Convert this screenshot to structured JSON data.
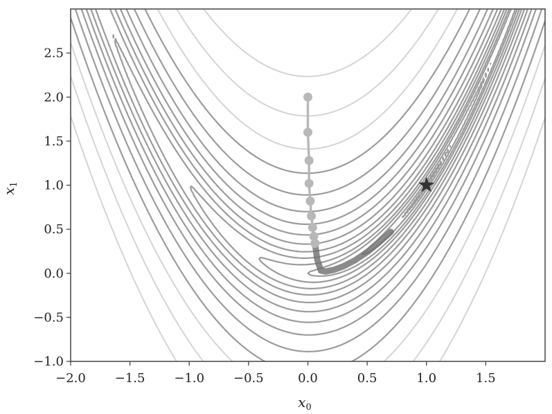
{
  "chart_data": {
    "type": "contour",
    "function": "rosenbrock",
    "xlabel": "x",
    "xlabel_sub": "0",
    "ylabel": "x",
    "ylabel_sub": "1",
    "xlim": [
      -2.0,
      2.0
    ],
    "ylim": [
      -1.0,
      3.0
    ],
    "xticks": [
      -2.0,
      -1.5,
      -1.0,
      -0.5,
      0.0,
      0.5,
      1.0,
      1.5
    ],
    "xtick_labels": [
      "−2.0",
      "−1.5",
      "−1.0",
      "−0.5",
      "0.0",
      "0.5",
      "1.0",
      "1.5"
    ],
    "yticks": [
      -1.0,
      -0.5,
      0.0,
      0.5,
      1.0,
      1.5,
      2.0,
      2.5
    ],
    "ytick_labels": [
      "−1.0",
      "−0.5",
      "0.0",
      "0.5",
      "1.0",
      "1.5",
      "2.0",
      "2.5"
    ],
    "contour_levels": [
      0.05,
      0.3,
      1,
      2,
      4,
      7,
      12,
      20,
      32,
      50,
      80,
      130,
      200,
      320,
      500
    ],
    "contour_faint_levels": [
      200,
      320,
      500
    ],
    "minimum": {
      "x": 1.0,
      "y": 1.0,
      "marker": "star"
    },
    "gradient_path_dots": [
      {
        "x": 0.0,
        "y": 2.0
      },
      {
        "x": 0.0,
        "y": 1.6
      },
      {
        "x": 0.01,
        "y": 1.28
      },
      {
        "x": 0.01,
        "y": 1.02
      },
      {
        "x": 0.02,
        "y": 0.82
      },
      {
        "x": 0.03,
        "y": 0.65
      },
      {
        "x": 0.04,
        "y": 0.52
      },
      {
        "x": 0.05,
        "y": 0.42
      },
      {
        "x": 0.06,
        "y": 0.34
      }
    ],
    "path_tail": [
      {
        "x": 0.06,
        "y": 0.34
      },
      {
        "x": 0.08,
        "y": 0.15
      },
      {
        "x": 0.11,
        "y": 0.03
      },
      {
        "x": 0.15,
        "y": 0.02
      },
      {
        "x": 0.22,
        "y": 0.04
      },
      {
        "x": 0.3,
        "y": 0.08
      },
      {
        "x": 0.4,
        "y": 0.15
      },
      {
        "x": 0.5,
        "y": 0.24
      },
      {
        "x": 0.6,
        "y": 0.35
      },
      {
        "x": 0.7,
        "y": 0.47
      }
    ],
    "colors": {
      "contour": "#8a8a8a",
      "contour_faint": "#d4d4d4",
      "path_light": "#b8b8b8",
      "path_dark": "#6e6e6e",
      "star": "#333333",
      "axes": "#444444"
    }
  }
}
